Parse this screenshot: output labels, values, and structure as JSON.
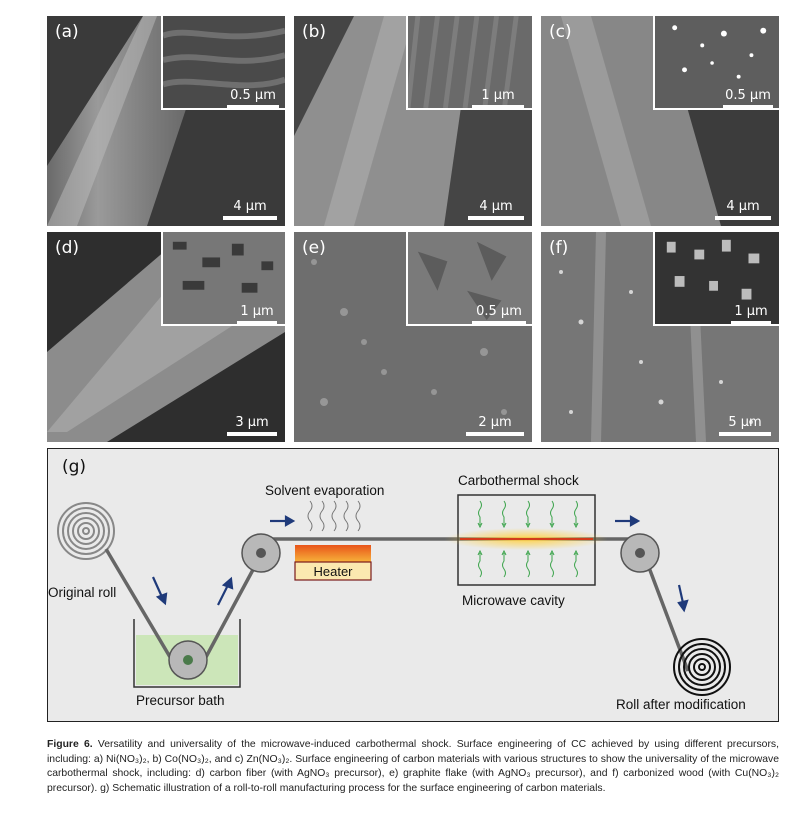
{
  "panels": [
    {
      "label": "(a)",
      "scale": "4 µm",
      "inset_scale": "0.5 µm"
    },
    {
      "label": "(b)",
      "scale": "4 µm",
      "inset_scale": "1 µm"
    },
    {
      "label": "(c)",
      "scale": "4 µm",
      "inset_scale": "0.5 µm"
    },
    {
      "label": "(d)",
      "scale": "3 µm",
      "inset_scale": "1 µm"
    },
    {
      "label": "(e)",
      "scale": "2 µm",
      "inset_scale": "0.5 µm"
    },
    {
      "label": "(f)",
      "scale": "5 µm",
      "inset_scale": "1 µm"
    }
  ],
  "schematic": {
    "label": "(g)",
    "original_roll": "Original roll",
    "precursor_bath": "Precursor bath",
    "solvent_evaporation": "Solvent evaporation",
    "heater": "Heater",
    "carbothermal_shock": "Carbothermal shock",
    "microwave_cavity": "Microwave cavity",
    "roll_after": "Roll after modification",
    "colors": {
      "arrow": "#1f3a7a",
      "bath": "#c9e6b4",
      "roller": "#b8b8b8",
      "heater_hot": "#e8541a",
      "heater_body": "#fbe9b0",
      "flame": "#ffd24a",
      "field_arrow": "#3aa34a"
    }
  },
  "caption": {
    "figure_label": "Figure 6.",
    "text": "Versatility and universality of the microwave-induced carbothermal shock. Surface engineering of CC achieved by using different precursors, including: a) Ni(NO₃)₂, b) Co(NO₃)₂, and c) Zn(NO₃)₂. Surface engineering of carbon materials with various structures to show the universality of the microwave carbothermal shock, including: d) carbon fiber (with AgNO₃ precursor), e) graphite flake (with AgNO₃ precursor), and f) carbonized wood (with Cu(NO₃)₂ precursor). g) Schematic illustration of a roll-to-roll manufacturing process for the surface engineering of carbon materials."
  }
}
